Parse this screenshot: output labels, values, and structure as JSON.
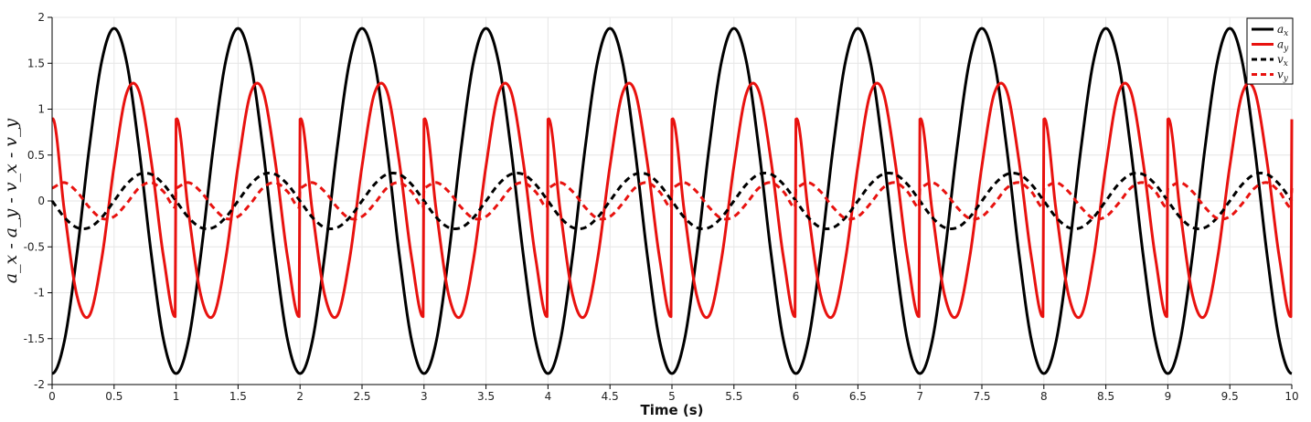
{
  "chart_data": {
    "type": "line",
    "title": "",
    "xlabel": "Time (s)",
    "ylabel": "a_x - a_y - v_x - v_y",
    "xlim": [
      0,
      10
    ],
    "ylim": [
      -2,
      2
    ],
    "grid": true,
    "legend_position": "top-right",
    "x_ticks": [
      0,
      0.5,
      1,
      1.5,
      2,
      2.5,
      3,
      3.5,
      4,
      4.5,
      5,
      5.5,
      6,
      6.5,
      7,
      7.5,
      8,
      8.5,
      9,
      9.5,
      10
    ],
    "x_tick_labels": [
      "0",
      "0.5",
      "1",
      "1.5",
      "2",
      "2.5",
      "3",
      "3.5",
      "4",
      "4.5",
      "5",
      "5.5",
      "6",
      "6.5",
      "7",
      "7.5",
      "8",
      "8.5",
      "9",
      "9.5",
      "10"
    ],
    "y_ticks": [
      -2,
      -1.5,
      -1,
      -0.5,
      0,
      0.5,
      1,
      1.5,
      2
    ],
    "y_tick_labels": [
      "-2",
      "-1.5",
      "-1",
      "-0.5",
      "0",
      "0.5",
      "1",
      "1.5",
      "2"
    ],
    "x": [
      0,
      0.1,
      0.2,
      0.3,
      0.4,
      0.5,
      0.6,
      0.7,
      0.8,
      0.9,
      1
    ],
    "series": [
      {
        "name": "a_x",
        "color": "#000000",
        "dash": "solid",
        "period": 1,
        "values": [
          -1.88,
          -1.52,
          -0.58,
          0.58,
          1.52,
          1.88,
          1.52,
          0.58,
          -0.58,
          -1.52,
          -1.88
        ]
      },
      {
        "name": "a_y",
        "color": "#e8120f",
        "dash": "solid",
        "period": 1,
        "values": [
          0.89,
          -0.12,
          -1.03,
          -1.25,
          -0.63,
          0.38,
          1.17,
          1.2,
          0.43,
          -0.62,
          -1.25
        ]
      },
      {
        "name": "v_x",
        "color": "#000000",
        "dash": "dashed",
        "period": 1,
        "values": [
          0,
          -0.18,
          -0.29,
          -0.29,
          -0.18,
          0,
          0.18,
          0.29,
          0.29,
          0.18,
          0
        ]
      },
      {
        "name": "v_y",
        "color": "#e8120f",
        "dash": "dashed",
        "period": 1,
        "values": [
          0.14,
          0.2,
          0.1,
          -0.07,
          -0.19,
          -0.17,
          -0.03,
          0.14,
          0.2,
          0.1,
          -0.07
        ]
      }
    ]
  }
}
